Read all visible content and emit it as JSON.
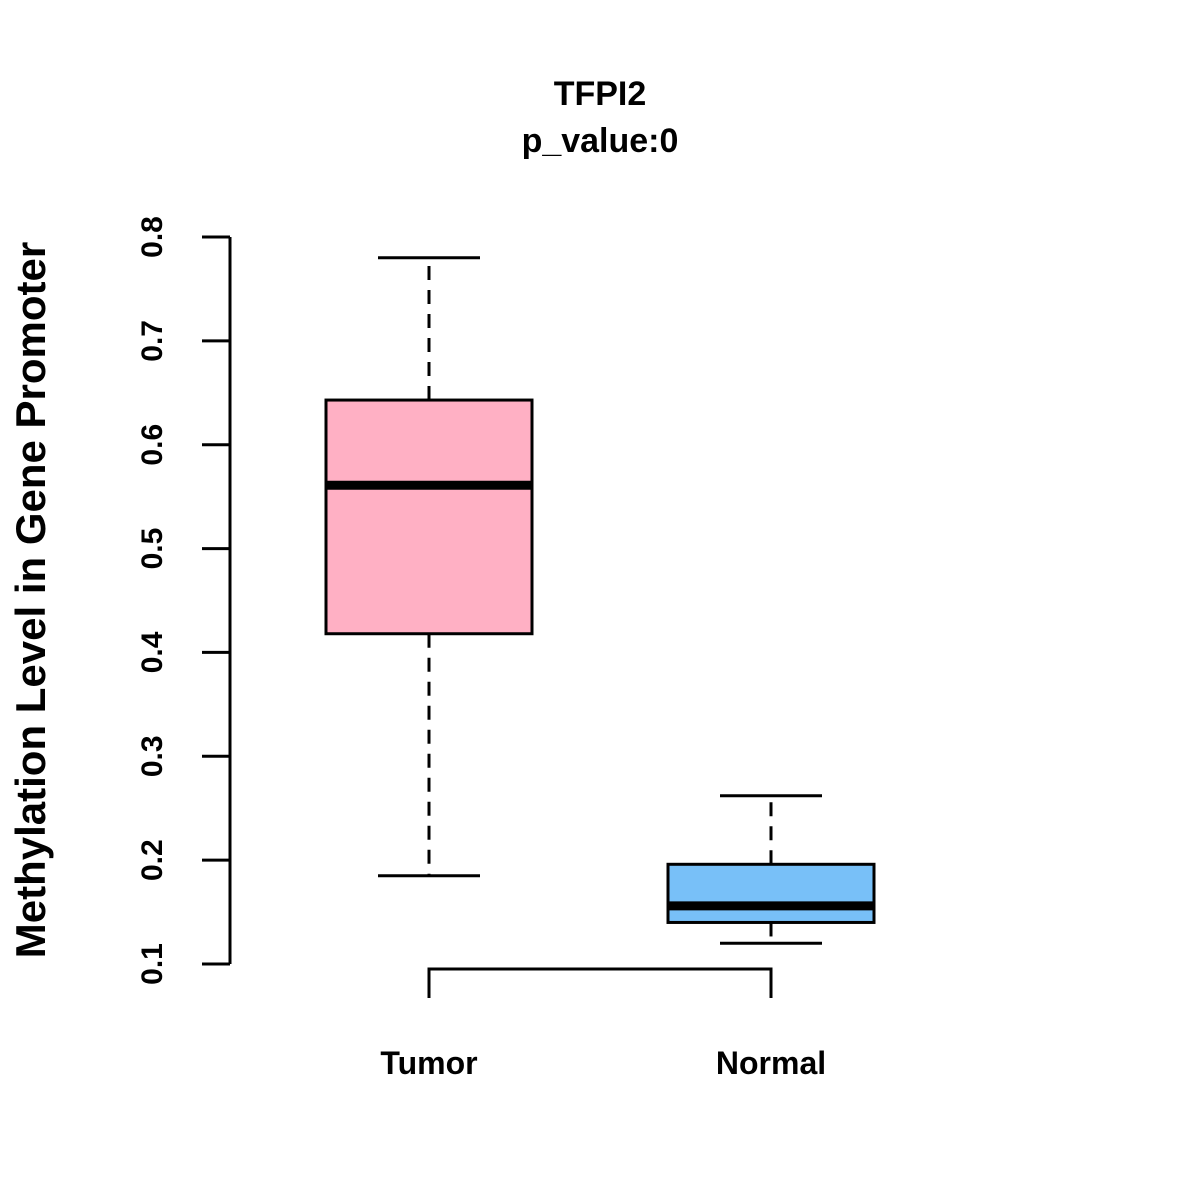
{
  "chart_data": {
    "type": "boxplot",
    "title": "TFPI2",
    "subtitle": "p_value:0",
    "ylabel": "Methylation Level in Gene Promoter",
    "xlabel": "",
    "ylim": [
      0.1,
      0.8
    ],
    "yticks": [
      0.1,
      0.2,
      0.3,
      0.4,
      0.5,
      0.6,
      0.7,
      0.8
    ],
    "ytick_labels": [
      "0.1",
      "0.2",
      "0.3",
      "0.4",
      "0.5",
      "0.6",
      "0.7",
      "0.8"
    ],
    "categories": [
      "Tumor",
      "Normal"
    ],
    "boxes": [
      {
        "name": "Tumor",
        "whisker_low": 0.185,
        "q1": 0.418,
        "median": 0.561,
        "q3": 0.643,
        "whisker_high": 0.78,
        "color": "#FFB0C4"
      },
      {
        "name": "Normal",
        "whisker_low": 0.12,
        "q1": 0.14,
        "median": 0.156,
        "q3": 0.196,
        "whisker_high": 0.262,
        "color": "#78C0F8"
      }
    ],
    "significance_bracket": {
      "from": "Tumor",
      "to": "Normal",
      "label": ""
    }
  }
}
